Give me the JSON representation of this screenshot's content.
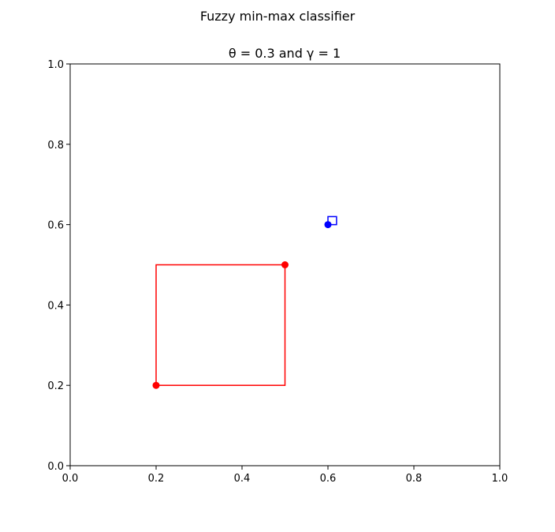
{
  "chart_data": {
    "type": "scatter",
    "title": "Fuzzy min-max classifier",
    "subtitle": "θ = 0.3 and γ = 1",
    "xlabel": "",
    "ylabel": "",
    "xlim": [
      0.0,
      1.0
    ],
    "ylim": [
      0.0,
      1.0
    ],
    "xticks": [
      "0.0",
      "0.2",
      "0.4",
      "0.6",
      "0.8",
      "1.0"
    ],
    "yticks": [
      "0.0",
      "0.2",
      "0.4",
      "0.6",
      "0.8",
      "1.0"
    ],
    "grid": false,
    "hyperboxes": [
      {
        "min": [
          0.2,
          0.2
        ],
        "max": [
          0.5,
          0.5
        ],
        "color": "#ff0000"
      },
      {
        "min": [
          0.6,
          0.6
        ],
        "max": [
          0.62,
          0.62
        ],
        "color": "#0000ff"
      }
    ],
    "points": [
      {
        "x": 0.2,
        "y": 0.2,
        "color": "#ff0000"
      },
      {
        "x": 0.5,
        "y": 0.5,
        "color": "#ff0000"
      },
      {
        "x": 0.6,
        "y": 0.6,
        "color": "#0000ff"
      }
    ]
  }
}
